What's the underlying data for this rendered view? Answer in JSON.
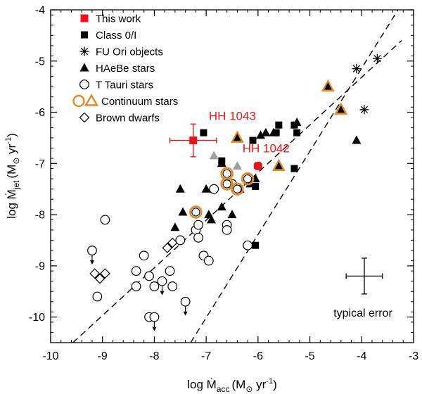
{
  "colors": {
    "red": "#e8161b",
    "orange": "#e08a2c",
    "gray": "#a0a0a0",
    "black": "#000000"
  },
  "chart_data": {
    "type": "scatter",
    "xlabel_main": "log Ṁ",
    "xlabel_sub": "acc",
    "xlabel_units_prefix": "(M",
    "xlabel_units_suffix": " yr",
    "xlabel_units_exp": "-1",
    "xlabel_units_close": ")",
    "ylabel_main": "log Ṁ",
    "ylabel_sub": "jet",
    "ylabel_units_prefix": "(M",
    "ylabel_units_suffix": " yr",
    "ylabel_units_exp": "-1",
    "ylabel_units_close": ")",
    "xlim": [
      -10,
      -3
    ],
    "ylim": [
      -10.5,
      -4
    ],
    "x_ticks": [
      {
        "v": -10,
        "label": "-10"
      },
      {
        "v": -9,
        "label": "-9"
      },
      {
        "v": -8,
        "label": "-8"
      },
      {
        "v": -7,
        "label": "-7"
      },
      {
        "v": -6,
        "label": "-6"
      },
      {
        "v": -5,
        "label": "-5"
      },
      {
        "v": -4,
        "label": "-4"
      },
      {
        "v": -3,
        "label": "-3"
      }
    ],
    "y_ticks": [
      {
        "v": -10,
        "label": "-10"
      },
      {
        "v": -9,
        "label": "-9"
      },
      {
        "v": -8,
        "label": "-8"
      },
      {
        "v": -7,
        "label": "-7"
      },
      {
        "v": -6,
        "label": "-6"
      },
      {
        "v": -5,
        "label": "-5"
      },
      {
        "v": -4,
        "label": "-4"
      }
    ],
    "grid": false,
    "legend_position": "top-left",
    "legend": [
      {
        "label": "This work",
        "marker": "red-square"
      },
      {
        "label": "Class 0/I",
        "marker": "square"
      },
      {
        "label": "FU Ori objects",
        "marker": "asterisk"
      },
      {
        "label": "HAeBe stars",
        "marker": "triangle"
      },
      {
        "label": "T Tauri stars",
        "marker": "circle"
      },
      {
        "label": "Continuum stars",
        "marker": "orange-circle-triangle"
      },
      {
        "label": "Brown dwarfs",
        "marker": "diamond"
      }
    ],
    "reference_lines": [
      {
        "name": "upper",
        "points": [
          [
            -7.3,
            -10.5
          ],
          [
            -3.3,
            -4
          ]
        ]
      },
      {
        "name": "lower",
        "points": [
          [
            -9.57,
            -10.5
          ],
          [
            -3.23,
            -4.6
          ]
        ]
      }
    ],
    "annotations": [
      {
        "text": "HH 1043",
        "x": -6.95,
        "y": -6.15,
        "color": "red"
      },
      {
        "text": "HH 1042",
        "x": -6.3,
        "y": -6.78,
        "color": "red"
      }
    ],
    "this_work": [
      {
        "name": "HH 1043",
        "x": -7.25,
        "y": -6.55,
        "xerr": 0.45,
        "yerr": 0.32,
        "marker": "square"
      },
      {
        "name": "HH 1042",
        "x": -6.0,
        "y": -7.05,
        "xerr": 0.07,
        "yerr": 0.07,
        "marker": "circle"
      }
    ],
    "typical_error": {
      "label": "typical error",
      "x": -3.95,
      "y": -9.2,
      "xerr": 0.35,
      "yerr": 0.35
    },
    "series": [
      {
        "name": "Class 0/I",
        "marker": "square",
        "points": [
          [
            -7.05,
            -6.4
          ],
          [
            -6.7,
            -6.95
          ],
          [
            -6.1,
            -6.55
          ],
          [
            -5.65,
            -6.4
          ],
          [
            -5.6,
            -6.25
          ],
          [
            -5.3,
            -6.25
          ],
          [
            -5.25,
            -6.4
          ],
          [
            -6.05,
            -7.45
          ],
          [
            -5.3,
            -7.1
          ],
          [
            -6.05,
            -8.6
          ]
        ]
      },
      {
        "name": "FU Ori objects",
        "marker": "asterisk",
        "points": [
          [
            -4.1,
            -5.15
          ],
          [
            -3.7,
            -4.95
          ],
          [
            -3.95,
            -5.95
          ]
        ]
      },
      {
        "name": "HAeBe stars",
        "marker": "triangle",
        "points": [
          [
            -7.5,
            -7.5
          ],
          [
            -7.6,
            -8.25
          ],
          [
            -7.45,
            -7.95
          ],
          [
            -7.0,
            -7.5
          ],
          [
            -6.95,
            -8.0
          ],
          [
            -6.9,
            -8.1
          ],
          [
            -6.7,
            -7.85
          ],
          [
            -6.7,
            -7.0
          ],
          [
            -6.5,
            -8.0
          ],
          [
            -6.35,
            -7.5
          ],
          [
            -6.15,
            -7.4
          ],
          [
            -6.05,
            -7.3
          ],
          [
            -5.95,
            -6.45
          ],
          [
            -5.85,
            -6.4
          ],
          [
            -5.7,
            -6.4
          ],
          [
            -5.25,
            -6.2
          ],
          [
            -4.1,
            -6.55
          ]
        ]
      },
      {
        "name": "HAeBe stars (gray)",
        "marker": "gray-triangle",
        "points": [
          [
            -6.85,
            -6.85
          ],
          [
            -6.4,
            -7.05
          ]
        ]
      },
      {
        "name": "T Tauri stars",
        "marker": "circle",
        "points": [
          [
            -9.2,
            -8.7
          ],
          [
            -9.1,
            -9.6
          ],
          [
            -8.95,
            -8.1
          ],
          [
            -8.35,
            -9.1
          ],
          [
            -8.35,
            -9.4
          ],
          [
            -8.2,
            -8.8
          ],
          [
            -8.1,
            -9.2
          ],
          [
            -8.0,
            -9.4
          ],
          [
            -7.85,
            -9.3
          ],
          [
            -7.7,
            -9.1
          ],
          [
            -7.65,
            -9.4
          ],
          [
            -7.5,
            -8.5
          ],
          [
            -7.4,
            -9.7
          ],
          [
            -7.2,
            -8.3
          ],
          [
            -7.15,
            -8.45
          ],
          [
            -7.15,
            -8.2
          ],
          [
            -7.05,
            -8.8
          ],
          [
            -6.95,
            -8.9
          ],
          [
            -6.85,
            -7.5
          ],
          [
            -6.6,
            -8.2
          ],
          [
            -6.6,
            -8.3
          ],
          [
            -6.5,
            -7.4
          ],
          [
            -6.2,
            -8.6
          ],
          [
            -8.1,
            -10.0
          ],
          [
            -8.0,
            -10.0
          ]
        ]
      },
      {
        "name": "T Tauri upper limits",
        "marker": "arrow-down",
        "points": [
          [
            -9.2,
            -8.7
          ],
          [
            -7.85,
            -9.3
          ],
          [
            -7.4,
            -9.7
          ],
          [
            -8.0,
            -10.0
          ]
        ]
      },
      {
        "name": "Continuum stars (circles)",
        "marker": "orange-circle",
        "points": [
          [
            -7.2,
            -7.95
          ],
          [
            -6.6,
            -7.2
          ],
          [
            -6.6,
            -7.4
          ],
          [
            -6.4,
            -7.5
          ],
          [
            -6.2,
            -7.3
          ]
        ]
      },
      {
        "name": "Continuum stars (triangles)",
        "marker": "orange-triangle",
        "points": [
          [
            -6.4,
            -6.5
          ],
          [
            -5.6,
            -7.05
          ],
          [
            -4.65,
            -5.5
          ],
          [
            -4.4,
            -5.95
          ]
        ]
      },
      {
        "name": "Brown dwarfs",
        "marker": "diamond",
        "points": [
          [
            -9.15,
            -9.15
          ],
          [
            -9.05,
            -9.25
          ],
          [
            -8.95,
            -9.15
          ],
          [
            -7.75,
            -8.65
          ],
          [
            -7.65,
            -8.55
          ]
        ]
      }
    ]
  }
}
